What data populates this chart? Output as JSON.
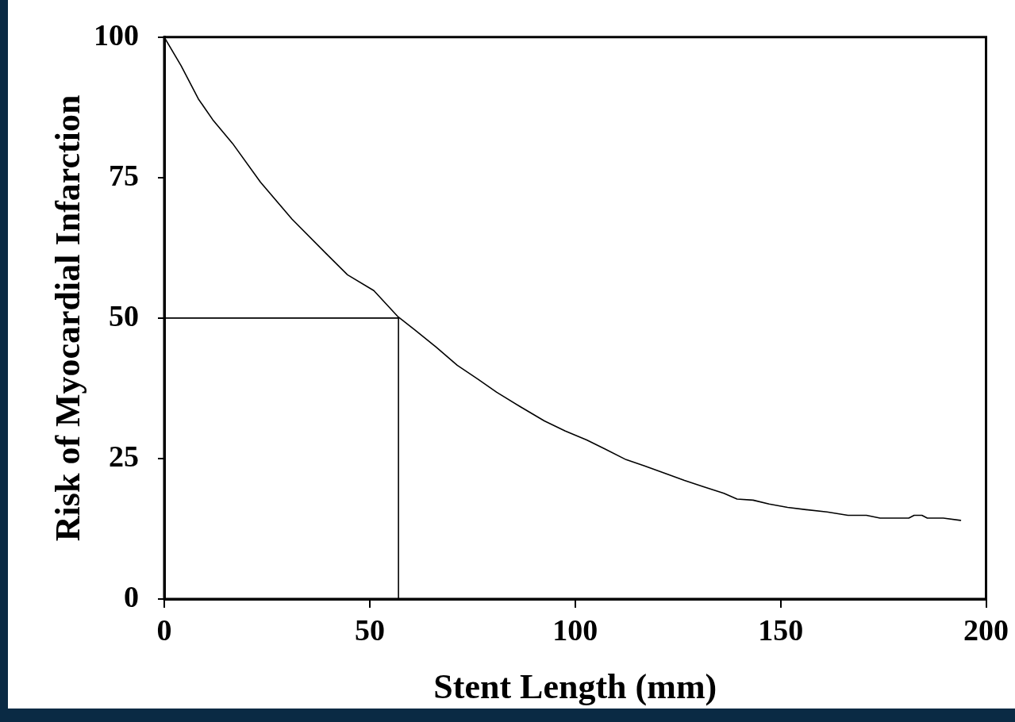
{
  "chart_data": {
    "type": "line",
    "xlabel": "Stent Length (mm)",
    "ylabel": "Risk of Myocardial Infarction",
    "xlim": [
      0,
      200
    ],
    "xticks": [
      0,
      50,
      100,
      150,
      200
    ],
    "ylim": [
      0,
      100
    ],
    "yticks": [
      0,
      25,
      50,
      75,
      100
    ],
    "series": [
      {
        "color": "#000000",
        "x": [
          0,
          4.1,
          8.3,
          11.8,
          16.6,
          23.4,
          31.1,
          39.5,
          44.6,
          51.0,
          56.8,
          61.0,
          66.2,
          71.3,
          76.4,
          80.9,
          86.7,
          92.5,
          97.6,
          102.8,
          107.3,
          112.4,
          116.9,
          122.1,
          126.6,
          131.1,
          136.2,
          139.4,
          143.3,
          147.2,
          151.7,
          156.2,
          161.3,
          166.4,
          170.9,
          174.2,
          181.2,
          182.5,
          184.4,
          185.7,
          189.6,
          193.8
        ],
        "values": [
          100,
          94.9,
          89.0,
          85.3,
          81.1,
          74.2,
          67.6,
          61.4,
          57.7,
          54.9,
          50.3,
          47.9,
          44.8,
          41.6,
          39.1,
          36.8,
          34.2,
          31.7,
          29.9,
          28.3,
          26.7,
          24.8,
          23.7,
          22.3,
          21.1,
          20.0,
          18.8,
          17.8,
          17.6,
          16.9,
          16.3,
          15.9,
          15.5,
          14.9,
          14.9,
          14.4,
          14.4,
          14.9,
          14.9,
          14.4,
          14.4,
          14.0
        ]
      },
      {
        "type": "line",
        "color": "#000000",
        "x": [
          0,
          57,
          57
        ],
        "values": [
          50,
          50,
          0
        ]
      }
    ]
  }
}
